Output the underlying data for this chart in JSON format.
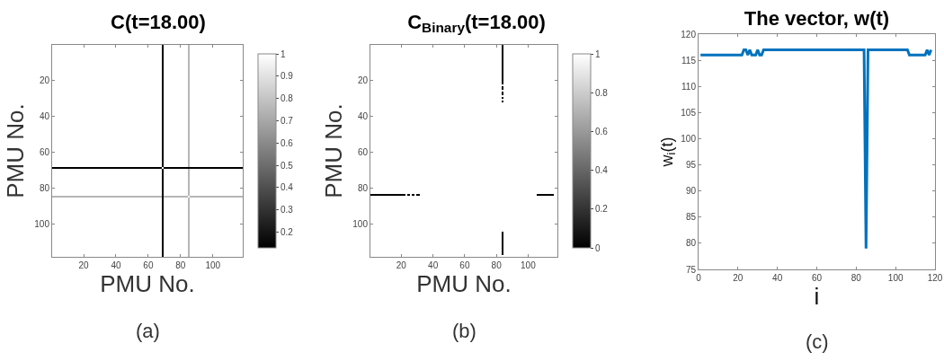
{
  "chart_data": [
    {
      "type": "heatmap",
      "title": "C(t=18.00)",
      "xlabel": "PMU No.",
      "ylabel": "PMU No.",
      "annotations": [
        "(a)"
      ],
      "x": [
        1,
        2,
        68,
        69,
        70,
        84,
        85,
        86,
        117,
        118
      ],
      "y": [
        1,
        2,
        68,
        69,
        70,
        84,
        85,
        86,
        117,
        118
      ],
      "cells": [
        [
          1,
          1,
          1,
          0.13,
          1,
          1,
          0.75,
          1,
          1,
          1
        ],
        [
          1,
          1,
          1,
          0.13,
          1,
          1,
          0.75,
          1,
          1,
          1
        ],
        [
          1,
          1,
          1,
          0.13,
          1,
          1,
          0.75,
          1,
          1,
          1
        ],
        [
          0.13,
          0.13,
          0.13,
          1,
          0.13,
          0.13,
          0.13,
          0.13,
          0.13,
          0.13
        ],
        [
          1,
          1,
          1,
          0.13,
          1,
          1,
          0.75,
          1,
          1,
          1
        ],
        [
          1,
          1,
          1,
          0.13,
          1,
          1,
          0.75,
          1,
          1,
          1
        ],
        [
          0.75,
          0.75,
          0.75,
          0.13,
          0.75,
          0.75,
          1,
          0.75,
          0.75,
          0.75
        ],
        [
          1,
          1,
          1,
          0.13,
          1,
          1,
          0.75,
          1,
          1,
          1
        ],
        [
          1,
          1,
          1,
          0.13,
          1,
          1,
          0.75,
          1,
          1,
          1
        ],
        [
          1,
          1,
          1,
          0.13,
          1,
          1,
          0.75,
          1,
          1,
          1
        ]
      ],
      "xlim": [
        0.5,
        118.5
      ],
      "ylim": [
        118.5,
        0.5
      ],
      "xticks": [
        20,
        40,
        60,
        80,
        100
      ],
      "yticks": [
        20,
        40,
        60,
        80,
        100
      ],
      "clim": [
        0.13,
        1
      ],
      "cticks": [
        0.2,
        0.3,
        0.4,
        0.5,
        0.6,
        0.7,
        0.8,
        0.9,
        1
      ],
      "grid": false
    },
    {
      "type": "heatmap",
      "title": "C$_{Binary}$(t=18.00)",
      "xlabel": "PMU No.",
      "ylabel": "PMU No.",
      "annotations": [
        "(b)"
      ],
      "x": [
        1,
        2,
        22,
        23,
        24,
        25,
        26,
        27,
        28,
        29,
        30,
        31,
        32,
        33,
        83,
        84,
        85,
        105,
        106,
        116,
        117,
        118
      ],
      "y": [
        1,
        2,
        22,
        23,
        24,
        25,
        26,
        27,
        28,
        29,
        30,
        31,
        32,
        33,
        83,
        84,
        85,
        104,
        105,
        117,
        118
      ],
      "cells": [
        [
          1,
          1,
          1,
          1,
          1,
          1,
          1,
          1,
          1,
          1,
          1,
          1,
          1,
          1,
          1,
          0,
          1,
          1,
          1,
          1,
          1,
          1
        ],
        [
          1,
          1,
          1,
          1,
          1,
          1,
          1,
          1,
          1,
          1,
          1,
          1,
          1,
          1,
          1,
          0,
          1,
          1,
          1,
          1,
          1,
          1
        ],
        [
          1,
          1,
          1,
          1,
          1,
          1,
          1,
          1,
          1,
          1,
          1,
          1,
          1,
          1,
          1,
          0,
          1,
          1,
          1,
          1,
          1,
          1
        ],
        [
          1,
          1,
          1,
          1,
          1,
          1,
          1,
          1,
          1,
          1,
          1,
          1,
          1,
          1,
          1,
          1,
          1,
          1,
          1,
          1,
          1,
          1
        ],
        [
          1,
          1,
          1,
          1,
          1,
          1,
          1,
          1,
          1,
          1,
          1,
          1,
          1,
          1,
          1,
          0,
          1,
          1,
          1,
          1,
          1,
          1
        ],
        [
          1,
          1,
          1,
          1,
          1,
          1,
          1,
          1,
          1,
          1,
          1,
          1,
          1,
          1,
          1,
          0,
          1,
          1,
          1,
          1,
          1,
          1
        ],
        [
          1,
          1,
          1,
          1,
          1,
          1,
          1,
          1,
          1,
          1,
          1,
          1,
          1,
          1,
          1,
          1,
          1,
          1,
          1,
          1,
          1,
          1
        ],
        [
          1,
          1,
          1,
          1,
          1,
          1,
          1,
          1,
          1,
          1,
          1,
          1,
          1,
          1,
          1,
          0,
          1,
          1,
          1,
          1,
          1,
          1
        ],
        [
          1,
          1,
          1,
          1,
          1,
          1,
          1,
          1,
          1,
          1,
          1,
          1,
          1,
          1,
          1,
          0,
          1,
          1,
          1,
          1,
          1,
          1
        ],
        [
          1,
          1,
          1,
          1,
          1,
          1,
          1,
          1,
          1,
          1,
          1,
          1,
          1,
          1,
          1,
          1,
          1,
          1,
          1,
          1,
          1,
          1
        ],
        [
          1,
          1,
          1,
          1,
          1,
          1,
          1,
          1,
          1,
          1,
          1,
          1,
          1,
          1,
          1,
          0,
          1,
          1,
          1,
          1,
          1,
          1
        ],
        [
          1,
          1,
          1,
          1,
          1,
          1,
          1,
          1,
          1,
          1,
          1,
          1,
          1,
          1,
          1,
          1,
          1,
          1,
          1,
          1,
          1,
          1
        ],
        [
          1,
          1,
          1,
          1,
          1,
          1,
          1,
          1,
          1,
          1,
          1,
          1,
          1,
          1,
          1,
          0,
          1,
          1,
          1,
          1,
          1,
          1
        ],
        [
          1,
          1,
          1,
          1,
          1,
          1,
          1,
          1,
          1,
          1,
          1,
          1,
          1,
          1,
          1,
          1,
          1,
          1,
          1,
          1,
          1,
          1
        ],
        [
          1,
          1,
          1,
          1,
          1,
          1,
          1,
          1,
          1,
          1,
          1,
          1,
          1,
          1,
          1,
          1,
          1,
          1,
          1,
          1,
          1,
          1
        ],
        [
          0,
          0,
          0,
          1,
          0,
          0,
          1,
          0,
          0,
          1,
          0,
          0,
          1,
          1,
          1,
          1,
          1,
          1,
          0,
          0,
          1,
          1
        ],
        [
          1,
          1,
          1,
          1,
          1,
          1,
          1,
          1,
          1,
          1,
          1,
          1,
          1,
          1,
          1,
          1,
          1,
          1,
          1,
          1,
          1,
          1
        ],
        [
          1,
          1,
          1,
          1,
          1,
          1,
          1,
          1,
          1,
          1,
          1,
          1,
          1,
          1,
          1,
          1,
          1,
          1,
          1,
          1,
          1,
          1
        ],
        [
          1,
          1,
          1,
          1,
          1,
          1,
          1,
          1,
          1,
          1,
          1,
          1,
          1,
          1,
          1,
          0,
          1,
          1,
          1,
          1,
          1,
          1
        ],
        [
          1,
          1,
          1,
          1,
          1,
          1,
          1,
          1,
          1,
          1,
          1,
          1,
          1,
          1,
          1,
          0,
          1,
          1,
          1,
          1,
          1,
          1
        ],
        [
          1,
          1,
          1,
          1,
          1,
          1,
          1,
          1,
          1,
          1,
          1,
          1,
          1,
          1,
          1,
          1,
          1,
          1,
          1,
          1,
          1,
          1
        ]
      ],
      "xlim": [
        0.5,
        118.5
      ],
      "ylim": [
        118.5,
        0.5
      ],
      "xticks": [
        20,
        40,
        60,
        80,
        100
      ],
      "yticks": [
        20,
        40,
        60,
        80,
        100
      ],
      "clim": [
        0,
        1
      ],
      "cticks": [
        0,
        0.2,
        0.4,
        0.6,
        0.8,
        1
      ],
      "grid": false
    },
    {
      "type": "line",
      "title": "The vector, w(t)",
      "xlabel": "i",
      "ylabel": "w$_{i}$(t)",
      "annotations": [
        "(c)"
      ],
      "x": [
        1,
        22,
        23,
        24,
        25,
        26,
        27,
        29,
        30,
        31,
        32,
        33,
        84,
        85,
        86,
        106,
        107,
        115,
        116,
        117,
        118
      ],
      "series": [
        {
          "color": "#0072bd",
          "values": [
            116,
            116,
            117,
            117,
            116,
            117,
            116,
            116,
            117,
            116,
            116,
            117,
            117,
            79,
            117,
            117,
            116,
            116,
            117,
            116,
            117
          ]
        }
      ],
      "xlim": [
        0,
        120
      ],
      "ylim": [
        75,
        120
      ],
      "xticks": [
        0,
        20,
        40,
        60,
        80,
        100,
        120
      ],
      "yticks": [
        75,
        80,
        85,
        90,
        95,
        100,
        105,
        110,
        115,
        120
      ],
      "grid": false,
      "legend": false,
      "marker": "none",
      "line_style": "solid"
    }
  ]
}
